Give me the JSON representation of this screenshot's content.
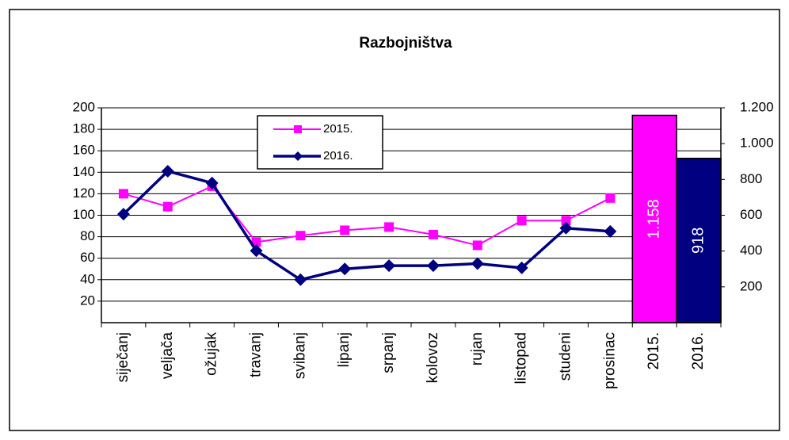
{
  "chart_data": {
    "type": "line",
    "title": "Razbojništva",
    "categories": [
      "siječanj",
      "veljača",
      "ožujak",
      "travanj",
      "svibanj",
      "lipanj",
      "srpanj",
      "kolovoz",
      "rujan",
      "listopad",
      "studeni",
      "prosinac",
      "2015.",
      "2016."
    ],
    "series": [
      {
        "name": "2015.",
        "color": "#ff00ff",
        "marker": "square",
        "values": [
          120,
          108,
          127,
          75,
          81,
          86,
          89,
          82,
          72,
          95,
          95,
          116,
          null,
          null
        ]
      },
      {
        "name": "2016.",
        "color": "#000080",
        "marker": "diamond",
        "values": [
          101,
          141,
          130,
          67,
          40,
          50,
          53,
          53,
          55,
          51,
          88,
          85,
          null,
          null
        ]
      },
      {
        "type": "bar",
        "axis": "y2",
        "colors": [
          null,
          null,
          null,
          null,
          null,
          null,
          null,
          null,
          null,
          null,
          null,
          null,
          "#ff00ff",
          "#000080"
        ],
        "values": [
          null,
          null,
          null,
          null,
          null,
          null,
          null,
          null,
          null,
          null,
          null,
          null,
          1158,
          918
        ],
        "value_labels": [
          null,
          null,
          null,
          null,
          null,
          null,
          null,
          null,
          null,
          null,
          null,
          null,
          "1.158",
          "918"
        ]
      }
    ],
    "ylim": [
      0,
      200
    ],
    "yticks": [
      20,
      40,
      60,
      80,
      100,
      120,
      140,
      160,
      180,
      200
    ],
    "y2lim": [
      0,
      1200
    ],
    "y2ticks": [
      200,
      400,
      600,
      800,
      {
        "value": 1000,
        "label": "1.000"
      },
      {
        "value": 1200,
        "label": "1.200"
      }
    ],
    "grid": true,
    "legend": "top-left"
  }
}
